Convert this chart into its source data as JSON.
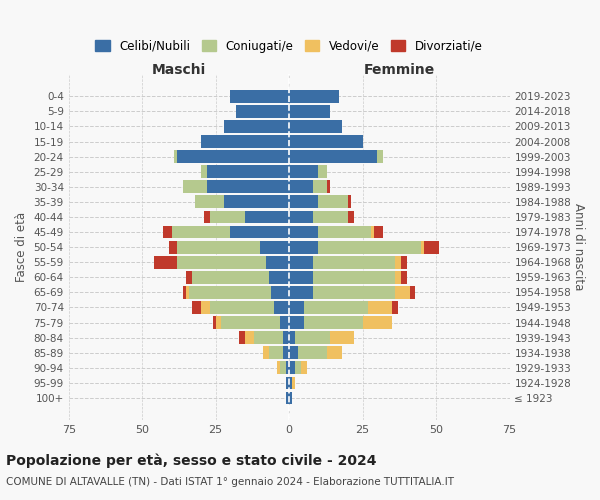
{
  "age_groups": [
    "100+",
    "95-99",
    "90-94",
    "85-89",
    "80-84",
    "75-79",
    "70-74",
    "65-69",
    "60-64",
    "55-59",
    "50-54",
    "45-49",
    "40-44",
    "35-39",
    "30-34",
    "25-29",
    "20-24",
    "15-19",
    "10-14",
    "5-9",
    "0-4"
  ],
  "birth_years": [
    "≤ 1923",
    "1924-1928",
    "1929-1933",
    "1934-1938",
    "1939-1943",
    "1944-1948",
    "1949-1953",
    "1954-1958",
    "1959-1963",
    "1964-1968",
    "1969-1973",
    "1974-1978",
    "1979-1983",
    "1984-1988",
    "1989-1993",
    "1994-1998",
    "1999-2003",
    "2004-2008",
    "2009-2013",
    "2014-2018",
    "2019-2023"
  ],
  "maschi": {
    "celibe": [
      1,
      1,
      1,
      2,
      2,
      3,
      5,
      6,
      7,
      8,
      10,
      20,
      15,
      22,
      28,
      28,
      38,
      30,
      22,
      18,
      20
    ],
    "coniugato": [
      0,
      0,
      2,
      5,
      10,
      20,
      22,
      28,
      26,
      30,
      28,
      20,
      12,
      10,
      8,
      2,
      1,
      0,
      0,
      0,
      0
    ],
    "vedovo": [
      0,
      0,
      1,
      2,
      3,
      2,
      3,
      1,
      0,
      0,
      0,
      0,
      0,
      0,
      0,
      0,
      0,
      0,
      0,
      0,
      0
    ],
    "divorziato": [
      0,
      0,
      0,
      0,
      2,
      1,
      3,
      1,
      2,
      8,
      3,
      3,
      2,
      0,
      0,
      0,
      0,
      0,
      0,
      0,
      0
    ]
  },
  "femmine": {
    "nubile": [
      1,
      1,
      2,
      3,
      2,
      5,
      5,
      8,
      8,
      8,
      10,
      10,
      8,
      10,
      8,
      10,
      30,
      25,
      18,
      14,
      17
    ],
    "coniugata": [
      0,
      0,
      2,
      10,
      12,
      20,
      22,
      28,
      28,
      28,
      35,
      18,
      12,
      10,
      5,
      3,
      2,
      0,
      0,
      0,
      0
    ],
    "vedova": [
      0,
      1,
      2,
      5,
      8,
      10,
      8,
      5,
      2,
      2,
      1,
      1,
      0,
      0,
      0,
      0,
      0,
      0,
      0,
      0,
      0
    ],
    "divorziata": [
      0,
      0,
      0,
      0,
      0,
      0,
      2,
      2,
      2,
      2,
      5,
      3,
      2,
      1,
      1,
      0,
      0,
      0,
      0,
      0,
      0
    ]
  },
  "colors": {
    "celibe": "#3a6ea5",
    "coniugato": "#b5c98e",
    "vedovo": "#f0c060",
    "divorziato": "#c0392b"
  },
  "xlim": 75,
  "title": "Popolazione per età, sesso e stato civile - 2024",
  "subtitle": "COMUNE DI ALTAVALLE (TN) - Dati ISTAT 1° gennaio 2024 - Elaborazione TUTTITALIA.IT",
  "ylabel_left": "Fasce di età",
  "ylabel_right": "Anni di nascita",
  "xlabel_left": "Maschi",
  "xlabel_right": "Femmine",
  "legend_labels": [
    "Celibi/Nubili",
    "Coniugati/e",
    "Vedovi/e",
    "Divorziati/e"
  ],
  "bg_color": "#f8f8f8"
}
